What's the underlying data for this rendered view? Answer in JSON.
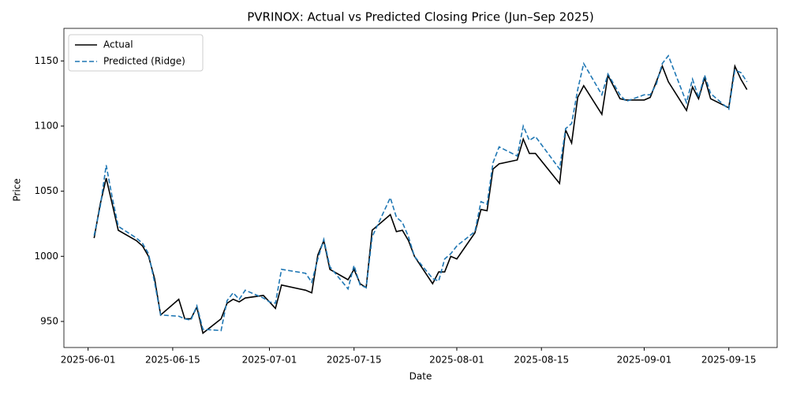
{
  "chart_data": {
    "type": "line",
    "title": "PVRINOX: Actual vs Predicted Closing Price (Jun–Sep 2025)",
    "x_label": "Date",
    "y_label": "Price",
    "x": [
      "2025-06-02",
      "2025-06-03",
      "2025-06-04",
      "2025-06-05",
      "2025-06-06",
      "2025-06-09",
      "2025-06-10",
      "2025-06-11",
      "2025-06-12",
      "2025-06-13",
      "2025-06-16",
      "2025-06-17",
      "2025-06-18",
      "2025-06-19",
      "2025-06-20",
      "2025-06-23",
      "2025-06-24",
      "2025-06-25",
      "2025-06-26",
      "2025-06-27",
      "2025-06-30",
      "2025-07-01",
      "2025-07-02",
      "2025-07-03",
      "2025-07-07",
      "2025-07-08",
      "2025-07-09",
      "2025-07-10",
      "2025-07-11",
      "2025-07-14",
      "2025-07-15",
      "2025-07-16",
      "2025-07-17",
      "2025-07-18",
      "2025-07-21",
      "2025-07-22",
      "2025-07-23",
      "2025-07-24",
      "2025-07-25",
      "2025-07-28",
      "2025-07-29",
      "2025-07-30",
      "2025-07-31",
      "2025-08-01",
      "2025-08-04",
      "2025-08-05",
      "2025-08-06",
      "2025-08-07",
      "2025-08-08",
      "2025-08-11",
      "2025-08-12",
      "2025-08-13",
      "2025-08-14",
      "2025-08-18",
      "2025-08-19",
      "2025-08-20",
      "2025-08-21",
      "2025-08-22",
      "2025-08-25",
      "2025-08-26",
      "2025-08-28",
      "2025-08-29",
      "2025-09-01",
      "2025-09-02",
      "2025-09-03",
      "2025-09-04",
      "2025-09-05",
      "2025-09-08",
      "2025-09-09",
      "2025-09-10",
      "2025-09-11",
      "2025-09-12",
      "2025-09-15",
      "2025-09-16",
      "2025-09-17",
      "2025-09-18"
    ],
    "series": [
      {
        "name": "Actual",
        "color": "#000000",
        "dash": false,
        "values": [
          1014,
          1040,
          1060,
          1040,
          1020,
          1012,
          1008,
          1000,
          983,
          955,
          967,
          952,
          952,
          961,
          941,
          952,
          964,
          967,
          965,
          968,
          970,
          965,
          960,
          978,
          974,
          972,
          1001,
          1012,
          990,
          982,
          990,
          979,
          976,
          1020,
          1032,
          1019,
          1020,
          1012,
          1000,
          979,
          988,
          988,
          1000,
          998,
          1018,
          1036,
          1035,
          1067,
          1071,
          1074,
          1090,
          1079,
          1079,
          1056,
          1097,
          1087,
          1122,
          1131,
          1109,
          1139,
          1121,
          1120,
          1120,
          1122,
          1134,
          1146,
          1134,
          1112,
          1130,
          1121,
          1137,
          1121,
          1114,
          1146,
          1136,
          1128
        ]
      },
      {
        "name": "Predicted (Ridge)",
        "color": "#1f77b4",
        "dash": true,
        "values": [
          1016,
          1038,
          1070,
          1045,
          1023,
          1014,
          1010,
          1002,
          980,
          955,
          954,
          952,
          951,
          962,
          944,
          943,
          966,
          972,
          967,
          974,
          968,
          965,
          964,
          990,
          987,
          980,
          998,
          1013,
          992,
          975,
          993,
          978,
          976,
          1015,
          1045,
          1030,
          1026,
          1015,
          1000,
          983,
          981,
          998,
          1002,
          1008,
          1019,
          1042,
          1040,
          1072,
          1084,
          1077,
          1100,
          1089,
          1092,
          1067,
          1098,
          1102,
          1128,
          1148,
          1124,
          1140,
          1124,
          1119,
          1124,
          1124,
          1132,
          1148,
          1154,
          1118,
          1136,
          1122,
          1139,
          1125,
          1113,
          1143,
          1141,
          1134
        ]
      }
    ],
    "xlim": [
      "2025-05-28",
      "2025-09-23"
    ],
    "xticks": [
      "2025-06-01",
      "2025-06-15",
      "2025-07-01",
      "2025-07-15",
      "2025-08-01",
      "2025-08-15",
      "2025-09-01",
      "2025-09-15"
    ],
    "ylim": [
      930,
      1175
    ],
    "yticks": [
      950,
      1000,
      1050,
      1100,
      1150
    ],
    "legend": "upper left"
  }
}
